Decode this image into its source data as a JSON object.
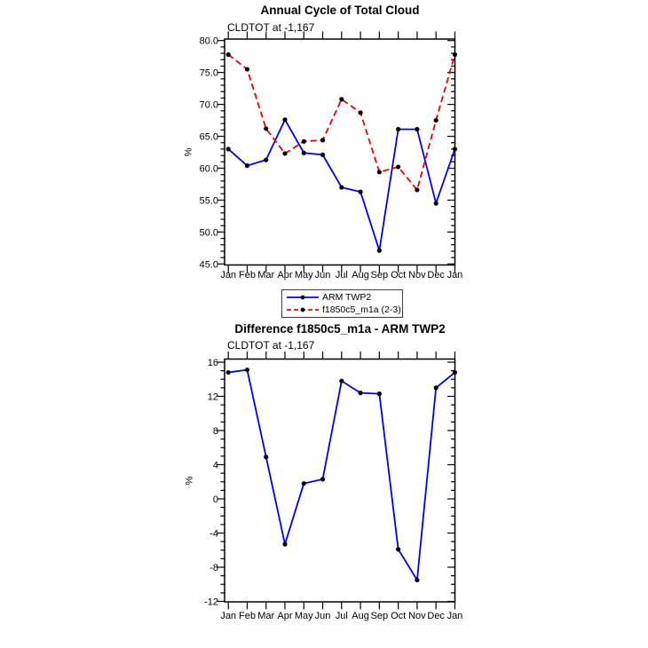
{
  "page": {
    "background": "#ffffff",
    "text_color": "#000000",
    "axis_color": "#000000",
    "marker_color": "#000000"
  },
  "chart_data": [
    {
      "type": "line",
      "title": "Annual Cycle of Total Cloud",
      "subtitle": "CLDTOT at -1,167",
      "ylabel": "%",
      "xlabel": "",
      "categories": [
        "Jan",
        "Feb",
        "Mar",
        "Apr",
        "May",
        "Jun",
        "Jul",
        "Aug",
        "Sep",
        "Oct",
        "Nov",
        "Dec",
        "Jan"
      ],
      "series": [
        {
          "name": "ARM TWP2",
          "color": "#0000ee",
          "style": "solid",
          "marker": "dot",
          "values": [
            63.0,
            60.4,
            61.3,
            67.6,
            62.4,
            62.1,
            57.0,
            56.3,
            47.1,
            66.1,
            66.1,
            54.5,
            63.0
          ]
        },
        {
          "name": "f1850c5_m1a (2-3)",
          "color": "#ee0000",
          "style": "dashed",
          "marker": "dot",
          "values": [
            77.8,
            75.5,
            66.2,
            62.3,
            64.2,
            64.4,
            70.8,
            68.7,
            59.4,
            60.2,
            56.6,
            67.5,
            77.8
          ]
        }
      ],
      "ylim": [
        45,
        80
      ],
      "ytick_major": 5,
      "ytick_minor": 1,
      "ytick_format": "fixed1",
      "grid": false,
      "legend": {
        "visible": true,
        "position": "below-center",
        "boxed": true
      }
    },
    {
      "type": "line",
      "title": "Difference f1850c5_m1a - ARM TWP2",
      "subtitle": "CLDTOT at -1,167",
      "ylabel": "%",
      "xlabel": "",
      "categories": [
        "Jan",
        "Feb",
        "Mar",
        "Apr",
        "May",
        "Jun",
        "Jul",
        "Aug",
        "Sep",
        "Oct",
        "Nov",
        "Dec",
        "Jan"
      ],
      "series": [
        {
          "color": "#0000ee",
          "style": "solid",
          "marker": "dot",
          "values": [
            14.8,
            15.1,
            4.9,
            -5.3,
            1.8,
            2.3,
            13.8,
            12.4,
            12.3,
            -5.9,
            -9.5,
            13.0,
            14.8
          ]
        }
      ],
      "ylim": [
        -12,
        16
      ],
      "ytick_major": 4,
      "ytick_minor": 1,
      "ytick_format": "integer",
      "grid": false,
      "legend": {
        "visible": false
      }
    }
  ]
}
